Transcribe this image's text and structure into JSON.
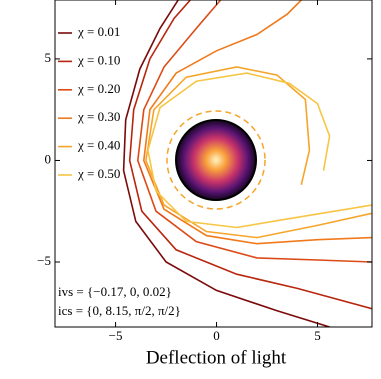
{
  "chart_data": {
    "type": "line",
    "x_label": "Deflection of light",
    "xlim": [
      -8,
      7.7
    ],
    "ylim": [
      -8.2,
      7.9
    ],
    "xticks": [
      {
        "value": -5,
        "label": "−5"
      },
      0,
      5
    ],
    "yticks": [
      {
        "value": -5,
        "label": "−5"
      },
      0,
      5
    ],
    "legend": "upper left",
    "annotations": [
      "ivs = {−0.17, 0, 0.02}",
      "ics = {0, 8.15, π/2, π/2}"
    ],
    "series": [
      {
        "name": "χ = 0.01",
        "color": "#7a0a0a",
        "x": [
          5.6,
          3,
          0,
          -2.5,
          -4,
          -4.6,
          -4.5,
          -3.8,
          -2.8,
          -1.9
        ],
        "values": [
          -8.2,
          -7.4,
          -6.4,
          -5,
          -3,
          -0.5,
          2,
          4.5,
          6.5,
          7.9
        ]
      },
      {
        "name": "χ = 0.10",
        "color": "#b8260f",
        "x": [
          7.7,
          4,
          1,
          -2,
          -3.7,
          -4.3,
          -4.1,
          -3.3,
          -2.1,
          -1.3
        ],
        "values": [
          -7.3,
          -6.3,
          -5.6,
          -4.4,
          -2.5,
          0,
          2.5,
          5,
          7,
          7.9
        ]
      },
      {
        "name": "χ = 0.20",
        "color": "#dc4a17",
        "x": [
          7.7,
          5,
          2,
          -1,
          -3,
          -3.9,
          -3.6,
          -2.6,
          -1,
          0.2
        ],
        "values": [
          -5,
          -4.9,
          -4.8,
          -4,
          -2.5,
          0,
          2.5,
          4.6,
          6.5,
          7.9
        ]
      },
      {
        "name": "χ = 0.30",
        "color": "#f07a1c",
        "x": [
          7.7,
          5,
          2,
          -0.5,
          -2.6,
          -3.6,
          -3.3,
          -2,
          0,
          2,
          3.5,
          4.2
        ],
        "values": [
          -3.8,
          -3.9,
          -4.1,
          -3.7,
          -2.4,
          0,
          2.5,
          4.3,
          5.4,
          6.2,
          7.2,
          7.9
        ]
      },
      {
        "name": "χ = 0.40",
        "color": "#f5a52a",
        "x": [
          7.7,
          5,
          2,
          -0.5,
          -2.6,
          -3.5,
          -3.1,
          -1.5,
          1,
          3,
          4.4,
          4.6,
          4.2
        ],
        "values": [
          -2.6,
          -3.2,
          -3.8,
          -3.5,
          -2.2,
          0,
          2.5,
          4.1,
          4.6,
          4.2,
          3,
          0.5,
          -1.2
        ]
      },
      {
        "name": "χ = 0.50",
        "color": "#f6c544",
        "x": [
          7.7,
          4,
          1,
          -1.5,
          -3,
          -3.4,
          -2.8,
          -1,
          1.5,
          3.6,
          5,
          5.6,
          5.3
        ],
        "values": [
          -2.2,
          -2.8,
          -3.3,
          -3,
          -1.5,
          0.5,
          2.6,
          3.9,
          4.3,
          3.8,
          2.8,
          1.2,
          -0.5
        ]
      }
    ]
  }
}
